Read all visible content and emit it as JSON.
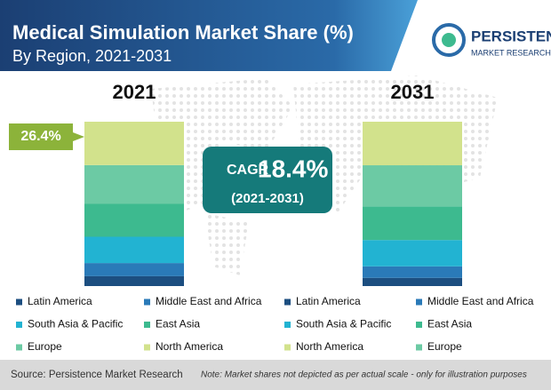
{
  "chart_data": {
    "type": "stacked-bar",
    "title": "Medical Simulation Market Share (%)",
    "subtitle": "By Region, 2021-2031",
    "categories": [
      "2021",
      "2031"
    ],
    "series": [
      {
        "name": "Latin America",
        "color": "#1c4e80",
        "values": [
          6,
          5
        ]
      },
      {
        "name": "Middle East and Africa",
        "color": "#2a7ab8",
        "values": [
          8,
          7
        ]
      },
      {
        "name": "South Asia  & Pacific",
        "color": "#22b3d2",
        "values": [
          16,
          16
        ]
      },
      {
        "name": "East Asia",
        "color": "#3dba8f",
        "values": [
          20,
          20.5
        ]
      },
      {
        "name": "Europe",
        "color": "#6ccaa4",
        "values": [
          23.6,
          25
        ]
      },
      {
        "name": "North America",
        "color": "#d2e28c",
        "values": [
          26.4,
          26.5
        ],
        "value_labels": [
          "26.4%",
          null
        ]
      }
    ],
    "cagr": {
      "label": "CAGR",
      "value": "18.4%",
      "period": "(2021-2031)"
    },
    "brand": {
      "name": "PERSISTENCE",
      "tagline": "MARKET RESEARCH"
    },
    "source": "Source: Persistence Market Research",
    "note": "Note: Market shares not depicted as per actual scale - only for illustration purposes"
  }
}
